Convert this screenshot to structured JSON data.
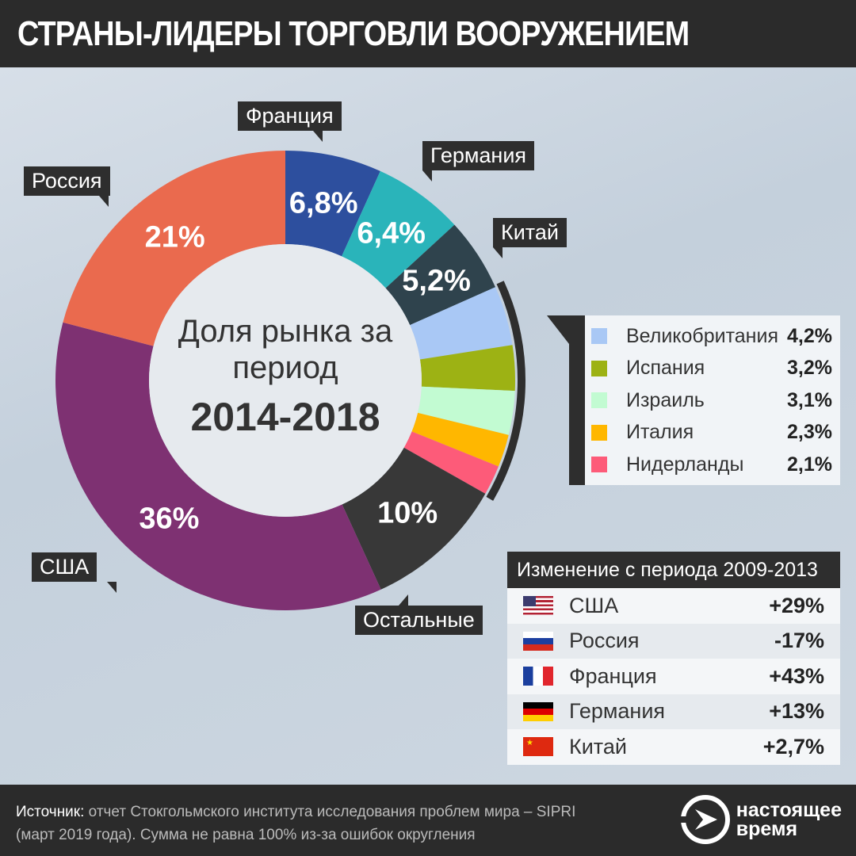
{
  "title": "СТРАНЫ-ЛИДЕРЫ ТОРГОВЛИ ВООРУЖЕНИЕМ",
  "center": {
    "line1": "Доля рынка за",
    "line2": "период",
    "period": "2014-2018"
  },
  "chart_data": {
    "type": "pie",
    "title": "Доля рынка за период 2014-2018",
    "unit": "%",
    "slices": [
      {
        "name": "Франция",
        "value": 6.8,
        "label": "6,8%",
        "color": "#2d4f9e",
        "callout": true
      },
      {
        "name": "Германия",
        "value": 6.4,
        "label": "6,4%",
        "color": "#2ab4ba",
        "callout": true
      },
      {
        "name": "Китай",
        "value": 5.2,
        "label": "5,2%",
        "color": "#2f434d",
        "callout": true
      },
      {
        "name": "Великобритания",
        "value": 4.2,
        "label": "4,2%",
        "color": "#a9c8f5",
        "legend": true
      },
      {
        "name": "Испания",
        "value": 3.2,
        "label": "3,2%",
        "color": "#9db214",
        "legend": true
      },
      {
        "name": "Израиль",
        "value": 3.1,
        "label": "3,1%",
        "color": "#c2fbd2",
        "legend": true
      },
      {
        "name": "Италия",
        "value": 2.3,
        "label": "2,3%",
        "color": "#ffb700",
        "legend": true
      },
      {
        "name": "Нидерланды",
        "value": 2.1,
        "label": "2,1%",
        "color": "#fd5b79",
        "legend": true
      },
      {
        "name": "Остальные",
        "value": 10,
        "label": "10%",
        "color": "#383838",
        "callout": true
      },
      {
        "name": "США",
        "value": 36,
        "label": "36%",
        "color": "#7e3172",
        "callout": true
      },
      {
        "name": "Россия",
        "value": 21,
        "label": "21%",
        "color": "#ea6a4e",
        "callout": true
      }
    ]
  },
  "change": {
    "title": "Изменение с периода 2009-2013",
    "rows": [
      {
        "country": "США",
        "value": "+29%",
        "flag": "us"
      },
      {
        "country": "Россия",
        "value": "-17%",
        "flag": "ru"
      },
      {
        "country": "Франция",
        "value": "+43%",
        "flag": "fr"
      },
      {
        "country": "Германия",
        "value": "+13%",
        "flag": "de"
      },
      {
        "country": "Китай",
        "value": "+2,7%",
        "flag": "cn"
      }
    ]
  },
  "footer": {
    "source_label": "Источник:",
    "source_text": " отчет Стокгольмского института исследования проблем мира – SIPRI",
    "note": "(март 2019 года). Сумма не равна 100% из-за ошибок округления"
  },
  "logo": {
    "line1": "настоящее",
    "line2": "время"
  }
}
